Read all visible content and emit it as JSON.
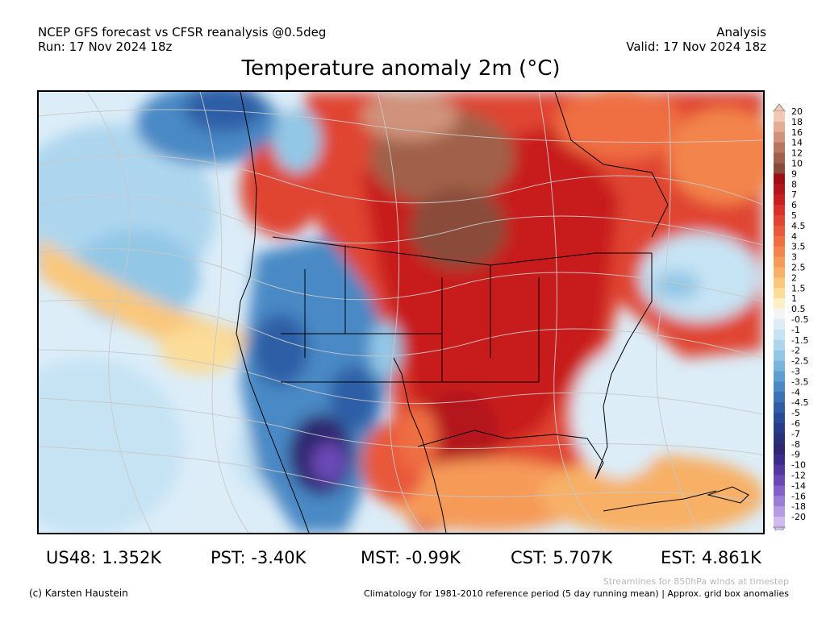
{
  "header": {
    "line1": "NCEP GFS forecast vs CFSR reanalysis @0.5deg",
    "line2": "Run: 17 Nov 2024 18z",
    "right1": "Analysis",
    "right2": "Valid: 17 Nov 2024 18z"
  },
  "title": "Temperature anomaly 2m (°C)",
  "colorbar": {
    "labels": [
      "20",
      "18",
      "16",
      "14",
      "12",
      "10",
      "9",
      "8",
      "7",
      "6",
      "5",
      "4.5",
      "4",
      "3.5",
      "3",
      "2.5",
      "2",
      "1.5",
      "1",
      "0.5",
      "-0.5",
      "-1",
      "-1.5",
      "-2",
      "-2.5",
      "-3",
      "-3.5",
      "-4",
      "-4.5",
      "-5",
      "-6",
      "-7",
      "-8",
      "-9",
      "-10",
      "-12",
      "-14",
      "-16",
      "-18",
      "-20"
    ],
    "colors": [
      "#f2c8b4",
      "#e3ad94",
      "#cf927a",
      "#b87660",
      "#a0604a",
      "#8a4c3a",
      "#9e0f14",
      "#b3151a",
      "#c81e1f",
      "#d9302a",
      "#e04431",
      "#e8583a",
      "#ef6e42",
      "#f3844c",
      "#f69a58",
      "#f7b066",
      "#f9c77b",
      "#fbdc98",
      "#fdefc4",
      "#f4f4f4",
      "#dcedf8",
      "#c6e3f4",
      "#add6ee",
      "#93c7e6",
      "#77b5dc",
      "#5e9fd1",
      "#4a89c5",
      "#3b72b6",
      "#2f5ea6",
      "#284b97",
      "#263c88",
      "#28307a",
      "#2e2670",
      "#3e2a8a",
      "#5436a0",
      "#6b48b6",
      "#8561c7",
      "#9d7ed6",
      "#b69be3",
      "#cfbbef"
    ]
  },
  "stats": [
    {
      "label": "US48:",
      "value": "1.352K"
    },
    {
      "label": "PST:",
      "value": "-3.40K"
    },
    {
      "label": "MST:",
      "value": "-0.99K"
    },
    {
      "label": "CST:",
      "value": "5.707K"
    },
    {
      "label": "EST:",
      "value": "4.861K"
    }
  ],
  "footer": {
    "credit": "(c) Karsten Haustein",
    "note_winds": "Streamlines for 850hPa winds at timestep",
    "note_climatology": "Climatology for 1981-2010 reference period (5 day running mean) | Approx. grid box anomalies"
  }
}
